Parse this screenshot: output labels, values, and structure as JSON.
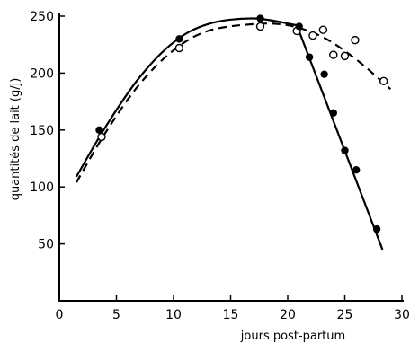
{
  "chart_data": {
    "type": "scatter",
    "title": "",
    "xlabel": "jours post-partum",
    "ylabel": "quantités de lait (g/j)",
    "xlim": [
      0,
      30
    ],
    "ylim": [
      0,
      250
    ],
    "x_ticks": [
      0,
      5,
      10,
      15,
      20,
      25,
      30
    ],
    "y_ticks": [
      50,
      100,
      150,
      200,
      250
    ],
    "grid": false,
    "legend": "none",
    "series": [
      {
        "marker": "filled-circle",
        "line": "solid",
        "color": "#000000",
        "points": [
          {
            "x": 3.5,
            "y": 150
          },
          {
            "x": 10.5,
            "y": 230
          },
          {
            "x": 17.6,
            "y": 248
          },
          {
            "x": 21.0,
            "y": 241
          },
          {
            "x": 21.9,
            "y": 214
          },
          {
            "x": 23.2,
            "y": 199
          },
          {
            "x": 24.0,
            "y": 165
          },
          {
            "x": 25.0,
            "y": 132
          },
          {
            "x": 26.0,
            "y": 115
          },
          {
            "x": 27.8,
            "y": 63
          }
        ],
        "fit_rising": [
          [
            1.5,
            109
          ],
          [
            4,
            152
          ],
          [
            7,
            196
          ],
          [
            10,
            227
          ],
          [
            13,
            243
          ],
          [
            17,
            248
          ],
          [
            20.8,
            242
          ]
        ],
        "fit_falling": [
          [
            20.8,
            242
          ],
          [
            28.3,
            45
          ]
        ]
      },
      {
        "marker": "open-circle",
        "line": "dashed",
        "color": "#000000",
        "points": [
          {
            "x": 3.7,
            "y": 144
          },
          {
            "x": 10.5,
            "y": 222
          },
          {
            "x": 17.6,
            "y": 241
          },
          {
            "x": 20.8,
            "y": 237
          },
          {
            "x": 22.2,
            "y": 233
          },
          {
            "x": 23.1,
            "y": 238
          },
          {
            "x": 24.0,
            "y": 216
          },
          {
            "x": 25.0,
            "y": 215
          },
          {
            "x": 25.9,
            "y": 229
          },
          {
            "x": 28.4,
            "y": 193
          }
        ],
        "fit": [
          [
            1.5,
            104
          ],
          [
            4,
            147
          ],
          [
            7,
            190
          ],
          [
            10,
            220
          ],
          [
            13,
            237
          ],
          [
            17,
            243
          ],
          [
            20,
            242
          ],
          [
            23,
            232
          ],
          [
            26,
            212
          ],
          [
            29,
            186
          ]
        ]
      }
    ]
  }
}
